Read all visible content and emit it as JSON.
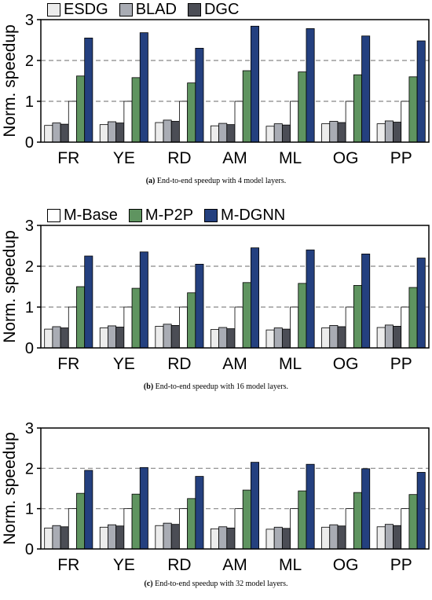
{
  "chart_data": [
    {
      "type": "bar",
      "caption_label": "(a)",
      "caption_text": "End-to-end speedup with 4 model layers.",
      "ylabel": "Norm. speedup",
      "ylim": [
        0,
        3
      ],
      "yticks": [
        "0",
        "1",
        "2",
        "3"
      ],
      "grid": "dashed horizontal at 1, 2",
      "legend": {
        "placement": "top-left",
        "entries": [
          "ESDG",
          "BLAD",
          "DGC"
        ]
      },
      "categories": [
        "FR",
        "YE",
        "RD",
        "AM",
        "ML",
        "OG",
        "PP"
      ],
      "series": [
        {
          "name": "ESDG",
          "values": [
            0.41,
            0.43,
            0.48,
            0.4,
            0.39,
            0.45,
            0.45
          ]
        },
        {
          "name": "BLAD",
          "values": [
            0.47,
            0.5,
            0.54,
            0.46,
            0.45,
            0.51,
            0.52
          ]
        },
        {
          "name": "DGC",
          "values": [
            0.44,
            0.47,
            0.51,
            0.43,
            0.42,
            0.48,
            0.49
          ]
        },
        {
          "name": "M-Base",
          "values": [
            1,
            1,
            1,
            1,
            1,
            1,
            1
          ]
        },
        {
          "name": "M-P2P",
          "values": [
            1.62,
            1.58,
            1.45,
            1.75,
            1.72,
            1.65,
            1.6
          ]
        },
        {
          "name": "M-DGNN",
          "values": [
            2.55,
            2.68,
            2.3,
            2.84,
            2.78,
            2.6,
            2.48
          ]
        }
      ]
    },
    {
      "type": "bar",
      "caption_label": "(b)",
      "caption_text": "End-to-end speedup with 16 model layers.",
      "ylabel": "Norm. speedup",
      "ylim": [
        0,
        3
      ],
      "yticks": [
        "0",
        "1",
        "2",
        "3"
      ],
      "grid": "dashed horizontal at 1, 2",
      "legend": {
        "placement": "top-left",
        "entries": [
          "M-Base",
          "M-P2P",
          "M-DGNN"
        ]
      },
      "categories": [
        "FR",
        "YE",
        "RD",
        "AM",
        "ML",
        "OG",
        "PP"
      ],
      "series": [
        {
          "name": "ESDG",
          "values": [
            0.46,
            0.49,
            0.53,
            0.45,
            0.44,
            0.49,
            0.5
          ]
        },
        {
          "name": "BLAD",
          "values": [
            0.52,
            0.54,
            0.58,
            0.5,
            0.49,
            0.55,
            0.56
          ]
        },
        {
          "name": "DGC",
          "values": [
            0.49,
            0.51,
            0.55,
            0.47,
            0.46,
            0.52,
            0.53
          ]
        },
        {
          "name": "M-Base",
          "values": [
            1,
            1,
            1,
            1,
            1,
            1,
            1
          ]
        },
        {
          "name": "M-P2P",
          "values": [
            1.5,
            1.46,
            1.35,
            1.6,
            1.58,
            1.53,
            1.48
          ]
        },
        {
          "name": "M-DGNN",
          "values": [
            2.25,
            2.35,
            2.05,
            2.45,
            2.4,
            2.3,
            2.2
          ]
        }
      ]
    },
    {
      "type": "bar",
      "caption_label": "(c)",
      "caption_text": "End-to-end speedup with 32 model layers.",
      "ylabel": "Norm. speedup",
      "ylim": [
        0,
        3
      ],
      "yticks": [
        "0",
        "1",
        "2",
        "3"
      ],
      "grid": "dashed horizontal at 1, 2",
      "legend": {
        "placement": "none",
        "entries": []
      },
      "categories": [
        "FR",
        "YE",
        "RD",
        "AM",
        "ML",
        "OG",
        "PP"
      ],
      "series": [
        {
          "name": "ESDG",
          "values": [
            0.52,
            0.54,
            0.58,
            0.5,
            0.49,
            0.54,
            0.55
          ]
        },
        {
          "name": "BLAD",
          "values": [
            0.58,
            0.6,
            0.64,
            0.55,
            0.54,
            0.6,
            0.61
          ]
        },
        {
          "name": "DGC",
          "values": [
            0.55,
            0.57,
            0.61,
            0.52,
            0.51,
            0.57,
            0.58
          ]
        },
        {
          "name": "M-Base",
          "values": [
            1,
            1,
            1,
            1,
            1,
            1,
            1
          ]
        },
        {
          "name": "M-P2P",
          "values": [
            1.38,
            1.36,
            1.25,
            1.46,
            1.44,
            1.4,
            1.35
          ]
        },
        {
          "name": "M-DGNN",
          "values": [
            1.95,
            2.02,
            1.8,
            2.15,
            2.1,
            1.99,
            1.9
          ]
        }
      ]
    }
  ],
  "colors": {
    "ESDG": "#ececec",
    "BLAD": "#a9acb4",
    "DGC": "#4b4d55",
    "M-Base": "#ffffff",
    "M-P2P": "#5f9460",
    "M-DGNN": "#24407f"
  }
}
